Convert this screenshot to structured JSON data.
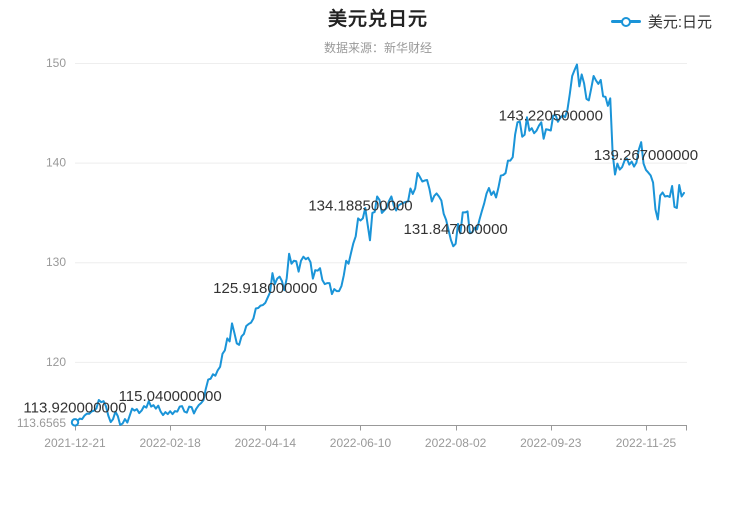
{
  "header": {
    "title": "美元兑日元",
    "subtitle": "数据来源：新华财经"
  },
  "legend": {
    "label": "美元:日元"
  },
  "colors": {
    "line": "#1a94d8",
    "title": "#222222",
    "subtitle": "#999999",
    "axis_label": "#999999",
    "data_label": "#333333",
    "grid_line": "#eeeeee",
    "axis_line": "#999999",
    "marker_fill": "#ffffff"
  },
  "chart_data": {
    "type": "line",
    "title": "美元兑日元",
    "subtitle": "数据来源：新华财经",
    "legend_position": "top-right",
    "grid": "horizontal",
    "x_axis": {
      "type": "category",
      "total_points": 257,
      "tick_point_indices": [
        0,
        40,
        80,
        120,
        160,
        200,
        240
      ],
      "tick_labels": [
        "2021-12-21",
        "2022-02-18",
        "2022-04-14",
        "2022-06-10",
        "2022-08-02",
        "2022-09-23",
        "2022-11-25"
      ]
    },
    "y_axis": {
      "min": 113.6565,
      "max": 150,
      "tick_values": [
        120,
        130,
        140,
        150
      ],
      "min_label": "113.6565"
    },
    "point_labels": [
      {
        "index": 0,
        "text": "113.920000000"
      },
      {
        "index": 40,
        "text": "115.040000000"
      },
      {
        "index": 80,
        "text": "125.918000000"
      },
      {
        "index": 120,
        "text": "134.188500000"
      },
      {
        "index": 160,
        "text": "131.847000000"
      },
      {
        "index": 200,
        "text": "143.220500000"
      },
      {
        "index": 240,
        "text": "139.267000000"
      }
    ],
    "series": [
      {
        "name": "美元:日元",
        "values": [
          113.92,
          114.05,
          114.3,
          114.25,
          114.6,
          114.8,
          114.78,
          115.02,
          115.1,
          115.32,
          116.17,
          115.95,
          116.05,
          115.55,
          114.6,
          113.95,
          114.25,
          115.0,
          114.55,
          113.6565,
          113.8,
          114.25,
          113.9,
          114.6,
          115.3,
          115.1,
          115.25,
          114.85,
          115.1,
          115.55,
          115.4,
          116.05,
          115.5,
          115.65,
          115.3,
          115.6,
          115.0,
          114.65,
          114.95,
          114.75,
          115.04,
          114.75,
          115.05,
          115.0,
          115.5,
          115.55,
          115.0,
          114.9,
          115.5,
          115.45,
          114.82,
          115.3,
          115.65,
          115.85,
          116.15,
          117.3,
          118.22,
          118.3,
          118.75,
          118.6,
          119.15,
          119.5,
          120.8,
          121.15,
          122.35,
          122.05,
          123.86,
          122.9,
          121.85,
          121.7,
          122.55,
          122.8,
          123.6,
          123.8,
          123.93,
          124.35,
          125.35,
          125.4,
          125.64,
          125.7,
          125.918,
          126.45,
          126.98,
          128.9,
          127.8,
          128.35,
          128.55,
          128.1,
          127.2,
          128.4,
          130.85,
          129.85,
          130.15,
          130.1,
          129.05,
          130.15,
          130.55,
          130.3,
          130.45,
          130.0,
          128.35,
          129.2,
          129.15,
          129.4,
          128.2,
          127.8,
          127.9,
          127.9,
          126.8,
          127.3,
          127.1,
          127.1,
          127.6,
          128.7,
          130.15,
          129.85,
          130.9,
          131.9,
          132.6,
          134.4,
          134.1885,
          134.4,
          135.45,
          133.8,
          132.2,
          134.95,
          135.05,
          136.6,
          136.25,
          134.95,
          135.2,
          135.45,
          136.15,
          136.6,
          135.7,
          135.2,
          135.7,
          135.85,
          135.95,
          136.05,
          136.1,
          137.4,
          136.85,
          137.4,
          138.95,
          138.55,
          138.1,
          138.2,
          138.25,
          137.35,
          136.1,
          136.65,
          136.9,
          136.6,
          136.2,
          134.85,
          134.25,
          133.25,
          132.25,
          131.6,
          131.847,
          133.85,
          132.9,
          135.0,
          135.0,
          135.1,
          132.9,
          133.0,
          133.45,
          133.3,
          134.25,
          135.1,
          135.9,
          136.9,
          137.45,
          136.75,
          137.1,
          136.5,
          137.5,
          138.7,
          138.75,
          138.95,
          140.2,
          140.2,
          140.55,
          142.8,
          144.05,
          144.1,
          142.6,
          142.8,
          144.55,
          143.2,
          143.45,
          142.95,
          143.2,
          143.7,
          144.05,
          142.4,
          143.35,
          143.3,
          143.2205,
          144.7,
          144.8,
          144.1,
          144.5,
          144.75,
          144.55,
          145.3,
          146.9,
          148.7,
          149.3,
          149.85,
          147.65,
          148.85,
          147.95,
          146.4,
          146.25,
          147.45,
          148.7,
          148.25,
          147.9,
          148.3,
          146.65,
          146.6,
          145.7,
          146.45,
          140.95,
          138.8,
          139.9,
          139.3,
          139.55,
          140.2,
          140.4,
          139.8,
          140.1,
          139.6,
          140.0,
          141.3,
          142.05,
          139.9,
          139.267,
          139.0,
          138.7,
          138.0,
          135.3,
          134.3,
          136.7,
          137.0,
          136.6,
          136.65,
          136.55,
          137.65,
          135.55,
          135.45,
          137.75,
          136.6,
          136.95
        ]
      }
    ]
  }
}
